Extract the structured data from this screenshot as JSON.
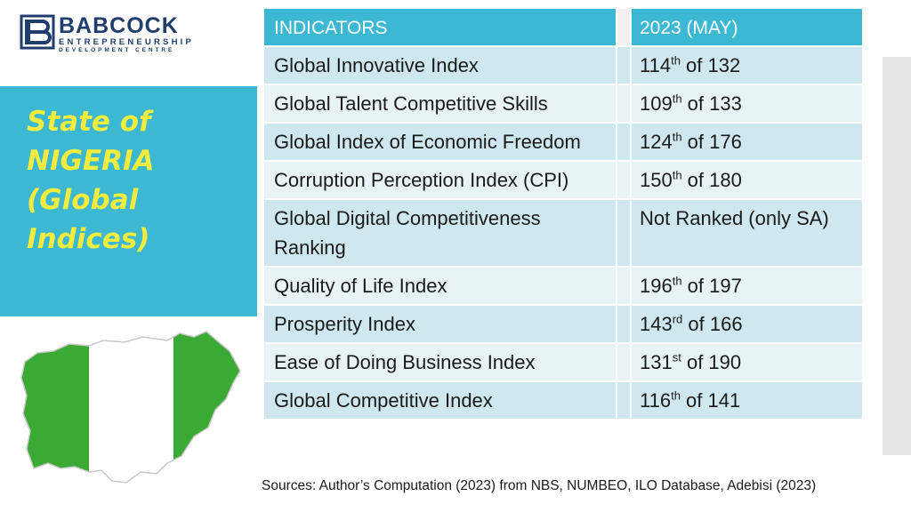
{
  "logo": {
    "name": "BABCOCK",
    "line1": "ENTREPRENEURSHIP",
    "line2": "DEVELOPMENT CENTRE",
    "brand_color": "#1f3d6e"
  },
  "title": "State of\nNIGERIA\n(Global\nIndices)",
  "colors": {
    "panel": "#3db8d3",
    "title_text": "#f1ec3e",
    "flag_green": "#3aaa35",
    "row_dark": "#cfe7ee",
    "row_light": "#e8f3f6"
  },
  "table": {
    "headers": {
      "indicator": "INDICATORS",
      "value": "2023 (MAY)"
    },
    "rows": [
      {
        "indicator": "Global Innovative Index",
        "rank": "114",
        "suffix": "th",
        "rest": " of 132"
      },
      {
        "indicator": "Global Talent Competitive Skills",
        "rank": "109",
        "suffix": "th",
        "rest": " of 133"
      },
      {
        "indicator": "Global Index of Economic Freedom",
        "rank": "124",
        "suffix": "th",
        "rest": " of 176"
      },
      {
        "indicator": "Corruption Perception Index (CPI)",
        "rank": "150",
        "suffix": "th",
        "rest": " of 180"
      },
      {
        "indicator": "Global Digital Competitiveness Ranking",
        "rank": "Not Ranked (only SA)",
        "suffix": "",
        "rest": ""
      },
      {
        "indicator": "Quality of Life Index",
        "rank": "196",
        "suffix": "th",
        "rest": " of 197"
      },
      {
        "indicator": "Prosperity Index",
        "rank": "143",
        "suffix": "rd",
        "rest": " of 166"
      },
      {
        "indicator": "Ease of Doing Business Index",
        "rank": "131",
        "suffix": "st",
        "rest": " of 190"
      },
      {
        "indicator": "Global Competitive Index",
        "rank": "116",
        "suffix": "th",
        "rest": " of 141"
      }
    ]
  },
  "sources": "Sources: Author’s Computation (2023) from NBS, NUMBEO, ILO Database, Adebisi (2023)"
}
